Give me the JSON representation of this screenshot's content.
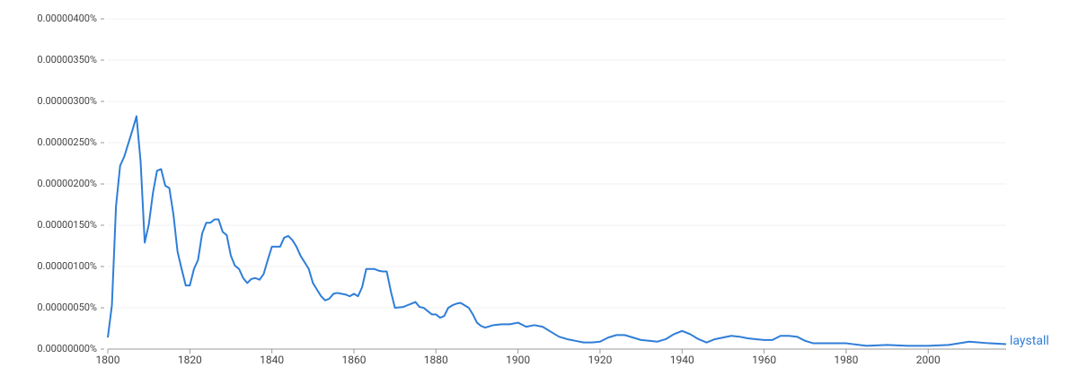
{
  "chart_data": {
    "type": "line",
    "x": [
      1800,
      1801,
      1802,
      1803,
      1804,
      1805,
      1806,
      1807,
      1808,
      1809,
      1810,
      1811,
      1812,
      1813,
      1814,
      1815,
      1816,
      1817,
      1818,
      1819,
      1820,
      1821,
      1822,
      1823,
      1824,
      1825,
      1826,
      1827,
      1828,
      1829,
      1830,
      1831,
      1832,
      1833,
      1834,
      1835,
      1836,
      1837,
      1838,
      1839,
      1840,
      1841,
      1842,
      1843,
      1844,
      1845,
      1846,
      1847,
      1848,
      1849,
      1850,
      1852,
      1853,
      1854,
      1855,
      1856,
      1857,
      1858,
      1859,
      1860,
      1861,
      1862,
      1863,
      1864,
      1865,
      1866,
      1867,
      1868,
      1869,
      1870,
      1872,
      1873,
      1874,
      1875,
      1876,
      1877,
      1878,
      1879,
      1880,
      1881,
      1882,
      1883,
      1884,
      1885,
      1886,
      1887,
      1888,
      1889,
      1890,
      1891,
      1892,
      1894,
      1896,
      1898,
      1900,
      1902,
      1904,
      1906,
      1908,
      1910,
      1912,
      1914,
      1916,
      1918,
      1920,
      1922,
      1924,
      1926,
      1928,
      1930,
      1932,
      1934,
      1936,
      1938,
      1940,
      1942,
      1944,
      1946,
      1948,
      1950,
      1952,
      1954,
      1956,
      1958,
      1960,
      1962,
      1964,
      1966,
      1968,
      1970,
      1972,
      1975,
      1980,
      1985,
      1990,
      1995,
      2000,
      2005,
      2010,
      2015,
      2019
    ],
    "series": [
      {
        "name": "laystall",
        "color": "#2f7ed8",
        "values": [
          1.4e-07,
          5.3e-07,
          1.73e-06,
          2.22e-06,
          2.33e-06,
          2.49e-06,
          2.65e-06,
          2.82e-06,
          2.27e-06,
          1.29e-06,
          1.51e-06,
          1.89e-06,
          2.16e-06,
          2.18e-06,
          1.98e-06,
          1.95e-06,
          1.63e-06,
          1.18e-06,
          9.7e-07,
          7.7e-07,
          7.7e-07,
          9.7e-07,
          1.08e-06,
          1.4e-06,
          1.53e-06,
          1.53e-06,
          1.57e-06,
          1.57e-06,
          1.42e-06,
          1.38e-06,
          1.13e-06,
          1.01e-06,
          9.7e-07,
          8.6e-07,
          8e-07,
          8.5e-07,
          8.6e-07,
          8.4e-07,
          9.1e-07,
          1.08e-06,
          1.24e-06,
          1.24e-06,
          1.24e-06,
          1.35e-06,
          1.37e-06,
          1.32e-06,
          1.24e-06,
          1.13e-06,
          1.05e-06,
          9.7e-07,
          8e-07,
          6.4e-07,
          5.9e-07,
          6.1e-07,
          6.7e-07,
          6.8e-07,
          6.7e-07,
          6.6e-07,
          6.4e-07,
          6.7e-07,
          6.4e-07,
          7.5e-07,
          9.7e-07,
          9.7e-07,
          9.7e-07,
          9.5e-07,
          9.4e-07,
          9.4e-07,
          7e-07,
          5e-07,
          5.1e-07,
          5.3e-07,
          5.5e-07,
          5.7e-07,
          5.1e-07,
          5e-07,
          4.6e-07,
          4.2e-07,
          4.2e-07,
          3.8e-07,
          4e-07,
          5e-07,
          5.3e-07,
          5.5e-07,
          5.6e-07,
          5.3e-07,
          5e-07,
          4.2e-07,
          3.2e-07,
          2.8e-07,
          2.6e-07,
          2.9e-07,
          3e-07,
          3e-07,
          3.2e-07,
          2.7e-07,
          2.9e-07,
          2.7e-07,
          2.1e-07,
          1.5e-07,
          1.2e-07,
          1e-07,
          8e-08,
          8e-08,
          9e-08,
          1.4e-07,
          1.7e-07,
          1.7e-07,
          1.4e-07,
          1.1e-07,
          1e-07,
          9e-08,
          1.2e-07,
          1.8e-07,
          2.2e-07,
          1.8e-07,
          1.2e-07,
          8e-08,
          1.2e-07,
          1.4e-07,
          1.6e-07,
          1.5e-07,
          1.3e-07,
          1.2e-07,
          1.1e-07,
          1.1e-07,
          1.6e-07,
          1.6e-07,
          1.5e-07,
          1e-07,
          7e-08,
          7e-08,
          7e-08,
          4e-08,
          5e-08,
          4e-08,
          4e-08,
          5e-08,
          9e-08,
          7e-08,
          6e-08
        ]
      }
    ],
    "xlim": [
      1800,
      2019
    ],
    "xticks": [
      1800,
      1820,
      1840,
      1860,
      1880,
      1900,
      1920,
      1940,
      1960,
      1980,
      2000
    ],
    "ylim": [
      0,
      4e-06
    ],
    "yticks": [
      {
        "value": 0,
        "label": "0.00000000%"
      },
      {
        "value": 5e-07,
        "label": "0.00000050%"
      },
      {
        "value": 1e-06,
        "label": "0.00000100%"
      },
      {
        "value": 1.5e-06,
        "label": "0.00000150%"
      },
      {
        "value": 2e-06,
        "label": "0.00000200%"
      },
      {
        "value": 2.5e-06,
        "label": "0.00000250%"
      },
      {
        "value": 3e-06,
        "label": "0.00000300%"
      },
      {
        "value": 3.5e-06,
        "label": "0.00000350%"
      },
      {
        "value": 4e-06,
        "label": "0.00000400%"
      }
    ],
    "grid": true
  }
}
